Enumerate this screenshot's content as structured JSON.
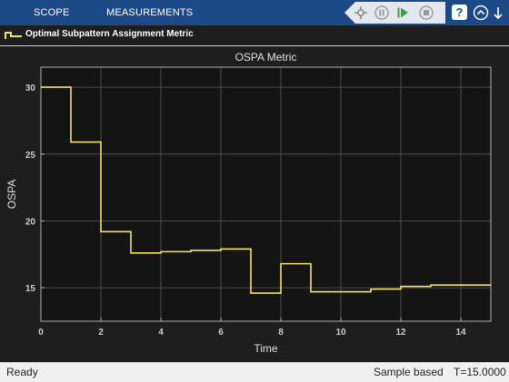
{
  "toolstrip": {
    "tabs": [
      {
        "label": "SCOPE"
      },
      {
        "label": "MEASUREMENTS"
      }
    ],
    "quick_access": [
      "highlight-signal-icon",
      "pause-icon",
      "step-forward-icon",
      "stop-icon"
    ],
    "help_label": "?"
  },
  "legend": {
    "label": "Optimal Subpattern Assignment Metric",
    "color": "#f5e264"
  },
  "colors": {
    "toolstrip_bg": "#1c4a86",
    "figure_bg": "#1e1e1e",
    "axes_bg": "#141414",
    "grid": "#5a5a5a",
    "trace": "#f5e264",
    "axis_text": "#cccccc"
  },
  "chart_data": {
    "type": "line",
    "title": "OSPA Metric",
    "xlabel": "Time",
    "ylabel": "OSPA",
    "xlim": [
      0,
      15
    ],
    "ylim": [
      12.5,
      31.5
    ],
    "xticks": [
      0,
      2,
      4,
      6,
      8,
      10,
      12,
      14
    ],
    "yticks": [
      15,
      20,
      25,
      30
    ],
    "grid": true,
    "step": true,
    "series": [
      {
        "name": "Optimal Subpattern Assignment Metric",
        "x": [
          0,
          1,
          2,
          3,
          4,
          5,
          6,
          7,
          8,
          9,
          10,
          11,
          12,
          13,
          14,
          15
        ],
        "y": [
          30.0,
          25.9,
          19.2,
          17.6,
          17.7,
          17.8,
          17.9,
          14.6,
          16.8,
          14.7,
          14.7,
          14.9,
          15.1,
          15.2,
          15.2,
          15.2
        ]
      }
    ]
  },
  "status": {
    "state": "Ready",
    "mode": "Sample based",
    "time": "T=15.0000"
  }
}
